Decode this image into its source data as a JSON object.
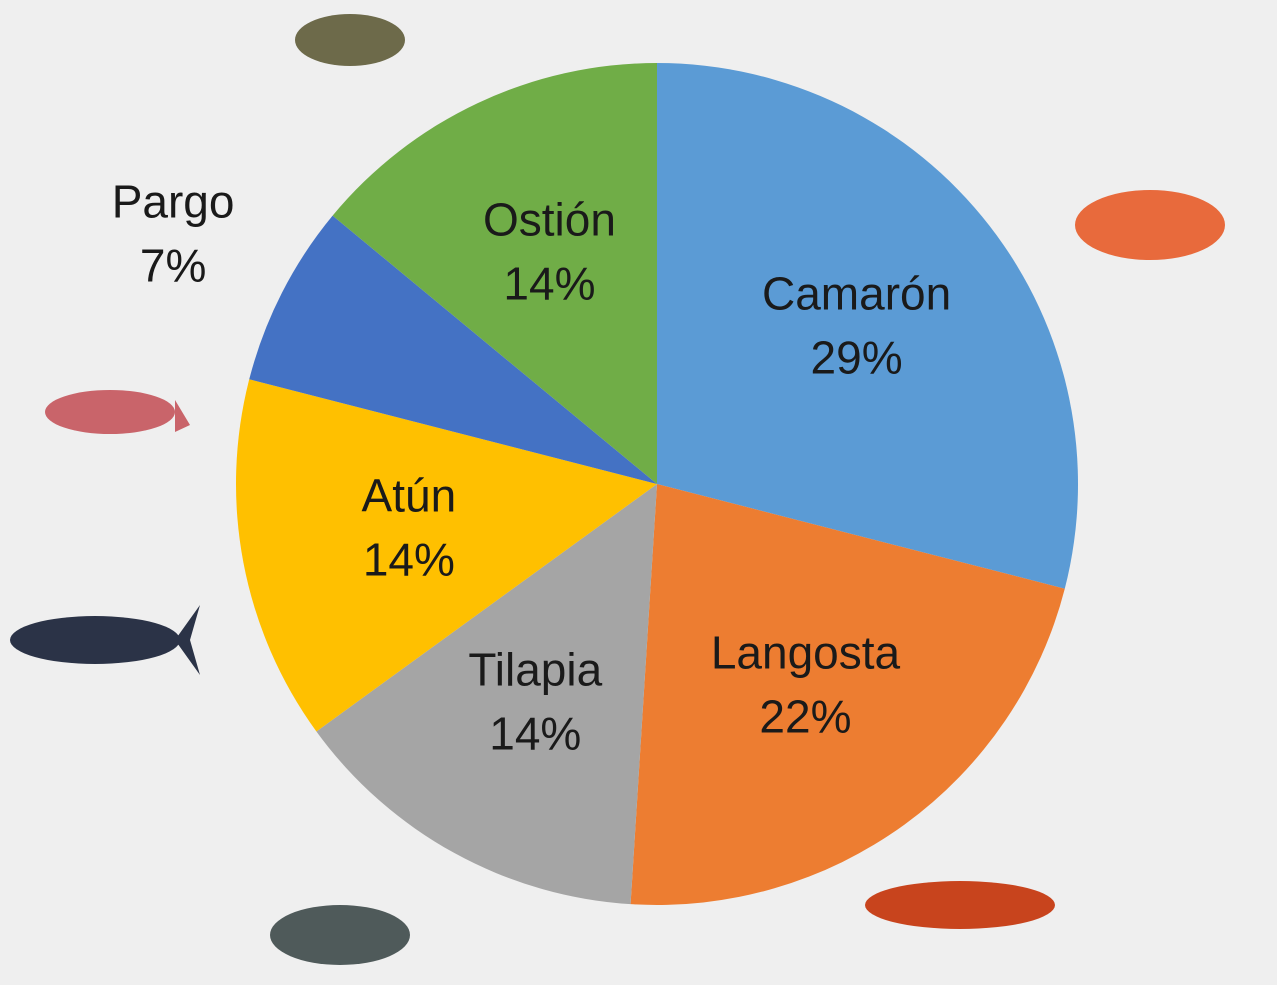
{
  "chart_data": {
    "type": "pie",
    "categories": [
      "Camarón",
      "Langosta",
      "Tilapia",
      "Atún",
      "Pargo",
      "Ostión"
    ],
    "values": [
      29,
      22,
      14,
      14,
      7,
      14
    ],
    "value_labels": [
      "29%",
      "22%",
      "14%",
      "14%",
      "7%",
      "14%"
    ],
    "colors": [
      "#5b9bd5",
      "#ed7d31",
      "#a5a5a5",
      "#ffc000",
      "#4472c4",
      "#70ad47"
    ]
  }
}
